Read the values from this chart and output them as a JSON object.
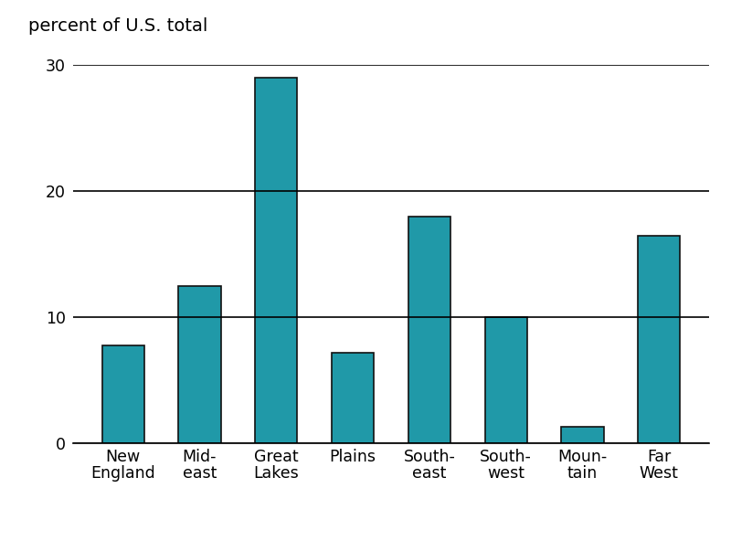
{
  "categories": [
    "New\nEngland",
    "Mid-\neast",
    "Great\nLakes",
    "Plains",
    "South-\neast",
    "South-\nwest",
    "Moun-\ntain",
    "Far\nWest"
  ],
  "values": [
    7.8,
    12.5,
    29.0,
    7.2,
    18.0,
    10.0,
    1.3,
    16.5
  ],
  "bar_color": "#2099A8",
  "bar_edge_color": "#111111",
  "title": "percent of U.S. total",
  "ylim": [
    0,
    30
  ],
  "yticks": [
    0,
    10,
    20,
    30
  ],
  "background_color": "#ffffff",
  "title_fontsize": 14,
  "tick_fontsize": 12.5,
  "bar_width": 0.55,
  "figsize": [
    8.0,
    5.92
  ],
  "dpi": 100
}
